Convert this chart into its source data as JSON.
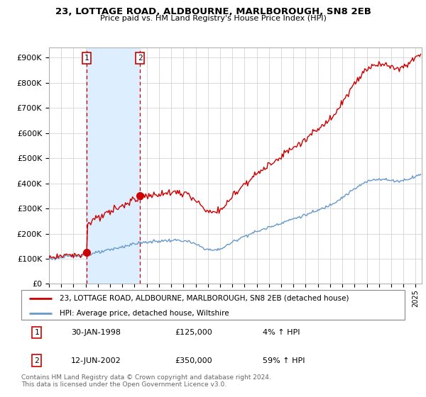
{
  "title": "23, LOTTAGE ROAD, ALDBOURNE, MARLBOROUGH, SN8 2EB",
  "subtitle": "Price paid vs. HM Land Registry's House Price Index (HPI)",
  "ylabel_ticks": [
    "£0",
    "£100K",
    "£200K",
    "£300K",
    "£400K",
    "£500K",
    "£600K",
    "£700K",
    "£800K",
    "£900K"
  ],
  "ytick_values": [
    0,
    100000,
    200000,
    300000,
    400000,
    500000,
    600000,
    700000,
    800000,
    900000
  ],
  "ylim": [
    0,
    940000
  ],
  "xlim_start": 1995.0,
  "xlim_end": 2025.5,
  "sale1_date": 1998.08,
  "sale1_price": 125000,
  "sale1_label": "1",
  "sale2_date": 2002.45,
  "sale2_price": 350000,
  "sale2_label": "2",
  "legend_line1": "23, LOTTAGE ROAD, ALDBOURNE, MARLBOROUGH, SN8 2EB (detached house)",
  "legend_line2": "HPI: Average price, detached house, Wiltshire",
  "table_row1": [
    "1",
    "30-JAN-1998",
    "£125,000",
    "4% ↑ HPI"
  ],
  "table_row2": [
    "2",
    "12-JUN-2002",
    "£350,000",
    "59% ↑ HPI"
  ],
  "footer": "Contains HM Land Registry data © Crown copyright and database right 2024.\nThis data is licensed under the Open Government Licence v3.0.",
  "hpi_color": "#6699cc",
  "sale_color": "#cc0000",
  "vline_color": "#cc0000",
  "shade_color": "#ddeeff",
  "background_color": "#ffffff",
  "grid_color": "#cccccc"
}
